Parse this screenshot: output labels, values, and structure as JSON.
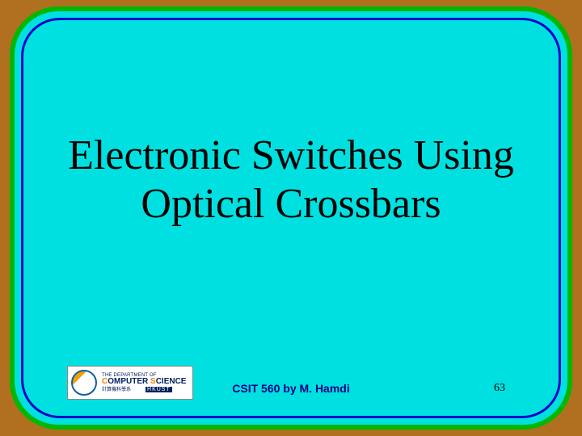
{
  "slide": {
    "title_line1": "Electronic Switches Using",
    "title_line2": "Optical Crossbars",
    "title_fontsize": 52,
    "title_color": "#000000",
    "background_color": "#00e0e0",
    "outer_border_color": "#00b800",
    "inner_border_color": "#0000c8",
    "page_background": "#b07020",
    "corner_radius": 60
  },
  "footer": {
    "credit": "CSIT 560 by M. Hamdi",
    "credit_color": "#000080",
    "credit_fontsize": 14,
    "page_number": "63",
    "page_number_color": "#000000"
  },
  "logo": {
    "line1": "THE DEPARTMENT OF",
    "line2_pre": "C",
    "line2_mid": "OMPUTER ",
    "line2_s": "S",
    "line2_end": "CIENCE",
    "line3_left": "計算機科學系",
    "line3_right": "HKUST",
    "bg": "#ffffff",
    "primary": "#002060",
    "accent": "#f08000"
  }
}
